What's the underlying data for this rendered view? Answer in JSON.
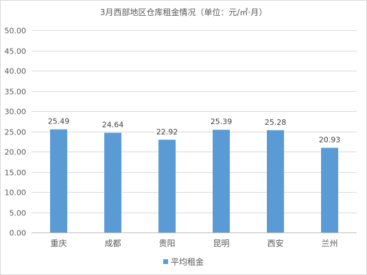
{
  "chart_data": {
    "type": "bar",
    "title": "3月西部地区仓库租金情况（单位：元/㎡·月）",
    "categories": [
      "重庆",
      "成都",
      "贵阳",
      "昆明",
      "西安",
      "兰州"
    ],
    "series": [
      {
        "name": "平均租金",
        "values": [
          25.49,
          24.64,
          22.92,
          25.39,
          25.28,
          20.93
        ],
        "color": "#5b9bd5"
      }
    ],
    "data_labels": [
      "25.49",
      "24.64",
      "22.92",
      "25.39",
      "25.28",
      "20.93"
    ],
    "y_tick_labels": [
      "0.00",
      "5.00",
      "10.00",
      "15.00",
      "20.00",
      "25.00",
      "30.00",
      "35.00",
      "40.00",
      "45.00",
      "50.00"
    ],
    "ylim": [
      0,
      50
    ],
    "y_step": 5,
    "grid": true,
    "legend_position": "bottom",
    "colors": {
      "grid": "#d9d9d9",
      "axis": "#bfbfbf",
      "text": "#595959"
    }
  }
}
